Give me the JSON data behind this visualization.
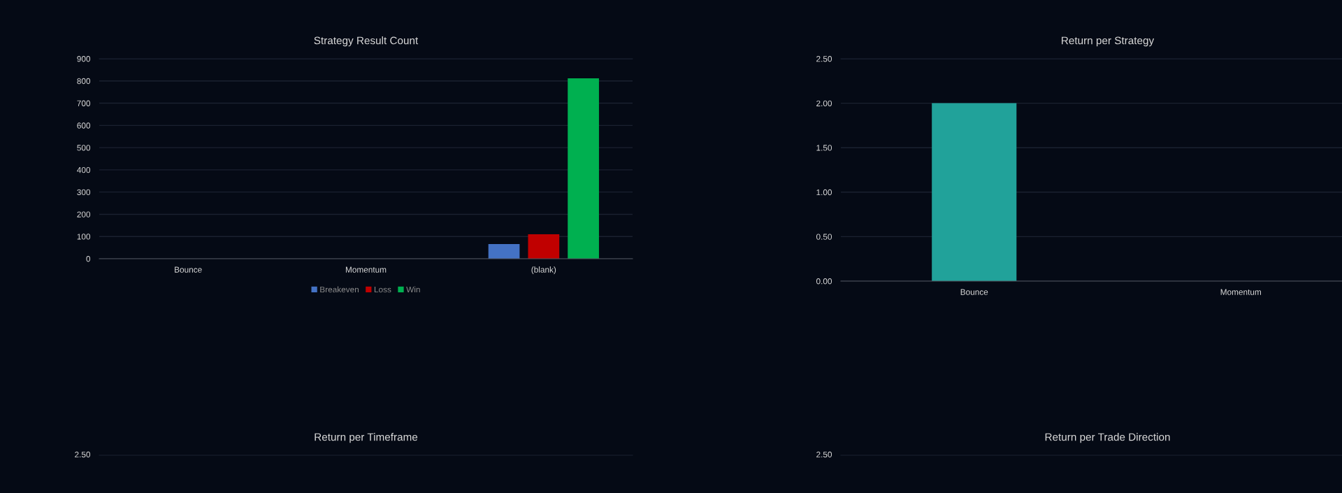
{
  "chart_data": [
    {
      "type": "bar",
      "title": "Strategy Result Count",
      "categories": [
        "Bounce",
        "Momentum",
        "(blank)"
      ],
      "series": [
        {
          "name": "Breakeven",
          "color": "#4472c4",
          "values": [
            null,
            null,
            66
          ]
        },
        {
          "name": "Loss",
          "color": "#c00000",
          "values": [
            null,
            null,
            110
          ]
        },
        {
          "name": "Win",
          "color": "#00b050",
          "values": [
            null,
            null,
            812
          ]
        }
      ],
      "ylim": [
        0,
        900
      ],
      "yticks": [
        0,
        100,
        200,
        300,
        400,
        500,
        600,
        700,
        800,
        900
      ],
      "grid": "y",
      "legend": "bottom"
    },
    {
      "type": "bar",
      "title": "Return per Strategy",
      "categories": [
        "Bounce",
        "Momentum"
      ],
      "series": [
        {
          "color": "#21a29a",
          "values": [
            2.0,
            null
          ]
        }
      ],
      "ylim": [
        0,
        2.5
      ],
      "yticks": [
        {
          "value": 0,
          "label": "0.00"
        },
        {
          "value": 0.5,
          "label": "0.50"
        },
        {
          "value": 1.0,
          "label": "1.00"
        },
        {
          "value": 1.5,
          "label": "1.50"
        },
        {
          "value": 2.0,
          "label": "2.00"
        },
        {
          "value": 2.5,
          "label": "2.50"
        }
      ],
      "grid": "y"
    },
    {
      "type": "other",
      "title": "Return per Timeframe",
      "annotations": [
        "2.50"
      ]
    },
    {
      "type": "other",
      "title": "Return per Trade Direction",
      "annotations": [
        "2.50"
      ]
    }
  ]
}
